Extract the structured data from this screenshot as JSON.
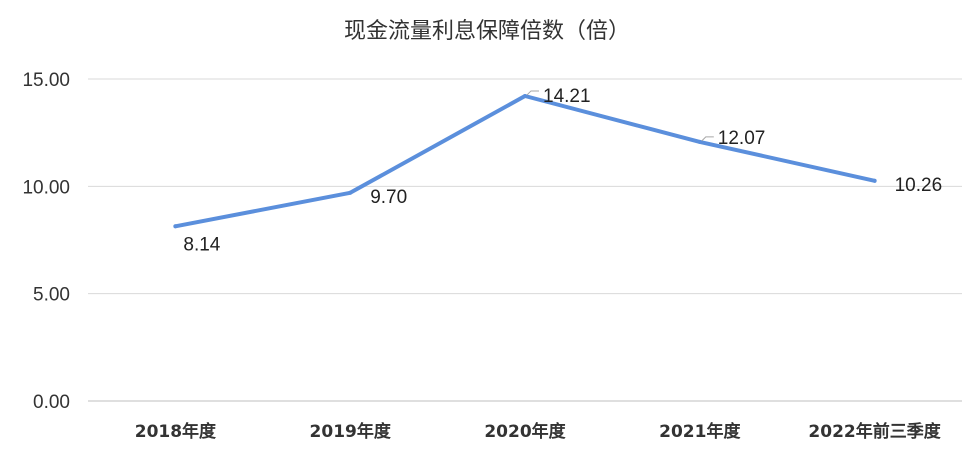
{
  "chart_data": {
    "type": "line",
    "title": "现金流量利息保障倍数（倍）",
    "categories": [
      "2018年度",
      "2019年度",
      "2020年度",
      "2021年度",
      "2022年前三季度"
    ],
    "series": [
      {
        "values": [
          8.14,
          9.7,
          14.21,
          12.07,
          10.26
        ]
      }
    ],
    "data_labels": [
      "8.14",
      "9.70",
      "14.21",
      "12.07",
      "10.26"
    ],
    "y_ticks": [
      "0.00",
      "5.00",
      "10.00",
      "15.00"
    ],
    "y_tick_values": [
      0,
      5,
      10,
      15
    ],
    "ylim": [
      0,
      15
    ],
    "grid": true,
    "legend": "none",
    "colors": {
      "line": "#5b8fdc",
      "grid": "#d9d9d9",
      "text": "#333333"
    }
  }
}
